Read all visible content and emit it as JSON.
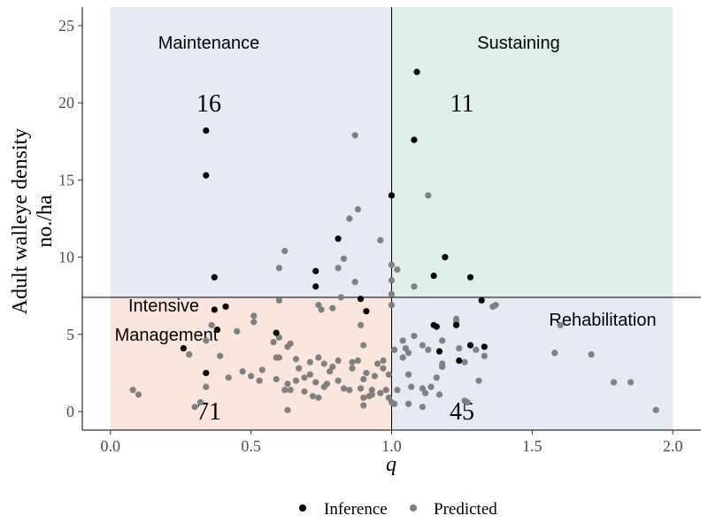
{
  "chart_data": {
    "type": "scatter",
    "title": "",
    "xlabel": "q",
    "ylabel_line1": "Adult walleye density",
    "ylabel_line2": "no./ha",
    "xlim": [
      -0.1,
      2.1
    ],
    "ylim": [
      -1.2,
      26.2
    ],
    "x_ticks": [
      0.0,
      0.5,
      1.0,
      1.5,
      2.0
    ],
    "x_tick_labels": [
      "0.0",
      "0.5",
      "1.0",
      "1.5",
      "2.0"
    ],
    "y_ticks": [
      0,
      5,
      10,
      15,
      20,
      25
    ],
    "y_tick_labels": [
      "0",
      "5",
      "10",
      "15",
      "20",
      "25"
    ],
    "grid": false,
    "legend_position": "bottom",
    "reference_lines": {
      "x": 1.0,
      "y": 7.4
    },
    "regions": [
      {
        "name": "Maintenance",
        "x": [
          0.0,
          1.0
        ],
        "y": [
          7.4,
          26.2
        ],
        "color": "#e6eaf4"
      },
      {
        "name": "Sustaining",
        "x": [
          1.0,
          2.0
        ],
        "y": [
          7.4,
          26.2
        ],
        "color": "#dff0ea"
      },
      {
        "name": "Intensive Management",
        "x": [
          0.0,
          1.0
        ],
        "y": [
          -1.2,
          7.4
        ],
        "color": "#fbe6de"
      },
      {
        "name": "Rehabilitation",
        "x": [
          1.0,
          2.0
        ],
        "y": [
          -1.2,
          7.4
        ],
        "color": "#e6eaf4"
      }
    ],
    "region_labels": {
      "maintenance": "Maintenance",
      "sustaining": "Sustaining",
      "intensive_line1": "Intensive",
      "intensive_line2": "Management",
      "rehabilitation": "Rehabilitation"
    },
    "counts": {
      "maintenance": "16",
      "sustaining": "11",
      "intensive": "71",
      "rehabilitation": "45"
    },
    "series": [
      {
        "name": "Inference",
        "color": "#000000",
        "points": [
          [
            1.09,
            22.0
          ],
          [
            0.34,
            18.2
          ],
          [
            1.08,
            17.6
          ],
          [
            0.34,
            15.3
          ],
          [
            1.0,
            14.0
          ],
          [
            0.81,
            11.2
          ],
          [
            1.19,
            10.0
          ],
          [
            0.37,
            8.7
          ],
          [
            0.73,
            9.1
          ],
          [
            1.15,
            8.8
          ],
          [
            1.28,
            8.7
          ],
          [
            0.73,
            8.1
          ],
          [
            0.41,
            6.8
          ],
          [
            0.37,
            6.6
          ],
          [
            0.89,
            7.3
          ],
          [
            1.32,
            7.2
          ],
          [
            0.91,
            6.5
          ],
          [
            0.38,
            5.3
          ],
          [
            0.59,
            5.1
          ],
          [
            1.15,
            5.6
          ],
          [
            1.16,
            5.5
          ],
          [
            1.23,
            5.6
          ],
          [
            0.26,
            4.1
          ],
          [
            1.28,
            4.3
          ],
          [
            1.33,
            4.2
          ],
          [
            1.17,
            3.9
          ],
          [
            1.24,
            3.3
          ],
          [
            0.34,
            2.5
          ]
        ]
      },
      {
        "name": "Predicted",
        "color": "#808080",
        "points": [
          [
            0.87,
            17.9
          ],
          [
            1.13,
            14.0
          ],
          [
            0.88,
            13.1
          ],
          [
            0.85,
            12.5
          ],
          [
            0.96,
            11.1
          ],
          [
            0.62,
            10.4
          ],
          [
            0.83,
            9.9
          ],
          [
            0.6,
            9.3
          ],
          [
            0.81,
            9.3
          ],
          [
            1.0,
            9.5
          ],
          [
            1.02,
            9.2
          ],
          [
            1.0,
            8.5
          ],
          [
            0.87,
            8.4
          ],
          [
            1.08,
            8.1
          ],
          [
            0.82,
            7.4
          ],
          [
            1.0,
            7.6
          ],
          [
            0.6,
            7.2
          ],
          [
            0.74,
            6.9
          ],
          [
            0.79,
            6.7
          ],
          [
            0.75,
            6.6
          ],
          [
            1.0,
            6.9
          ],
          [
            1.36,
            6.8
          ],
          [
            1.37,
            6.9
          ],
          [
            0.51,
            6.2
          ],
          [
            0.51,
            5.8
          ],
          [
            0.36,
            5.6
          ],
          [
            0.89,
            5.6
          ],
          [
            1.23,
            6.0
          ],
          [
            1.23,
            5.8
          ],
          [
            1.6,
            5.6
          ],
          [
            0.45,
            5.2
          ],
          [
            0.6,
            4.8
          ],
          [
            0.34,
            4.6
          ],
          [
            1.08,
            4.9
          ],
          [
            1.04,
            4.6
          ],
          [
            1.11,
            4.3
          ],
          [
            0.58,
            4.5
          ],
          [
            0.63,
            4.2
          ],
          [
            0.64,
            4.4
          ],
          [
            0.9,
            4.3
          ],
          [
            1.01,
            4.0
          ],
          [
            1.05,
            4.1
          ],
          [
            1.13,
            4.0
          ],
          [
            1.18,
            4.6
          ],
          [
            1.24,
            4.1
          ],
          [
            1.3,
            4.0
          ],
          [
            0.28,
            3.7
          ],
          [
            0.39,
            3.6
          ],
          [
            0.59,
            3.5
          ],
          [
            0.6,
            3.5
          ],
          [
            0.66,
            3.4
          ],
          [
            0.71,
            3.2
          ],
          [
            0.74,
            3.5
          ],
          [
            0.76,
            3.1
          ],
          [
            0.81,
            3.3
          ],
          [
            0.86,
            3.2
          ],
          [
            0.88,
            3.3
          ],
          [
            0.95,
            3.1
          ],
          [
            0.97,
            3.3
          ],
          [
            1.04,
            3.5
          ],
          [
            1.06,
            3.8
          ],
          [
            1.18,
            3.1
          ],
          [
            1.26,
            3.2
          ],
          [
            1.33,
            3.6
          ],
          [
            1.58,
            3.8
          ],
          [
            1.71,
            3.7
          ],
          [
            0.47,
            2.6
          ],
          [
            0.5,
            2.3
          ],
          [
            0.54,
            2.7
          ],
          [
            0.67,
            2.8
          ],
          [
            0.71,
            2.4
          ],
          [
            0.78,
            2.6
          ],
          [
            0.79,
            2.9
          ],
          [
            0.86,
            2.8
          ],
          [
            0.91,
            2.5
          ],
          [
            0.97,
            2.8
          ],
          [
            1.18,
            2.9
          ],
          [
            0.42,
            2.2
          ],
          [
            0.53,
            2.0
          ],
          [
            0.59,
            2.1
          ],
          [
            0.66,
            2.0
          ],
          [
            0.69,
            2.2
          ],
          [
            0.73,
            1.9
          ],
          [
            0.77,
            1.8
          ],
          [
            0.81,
            2.0
          ],
          [
            0.9,
            2.1
          ],
          [
            0.94,
            2.3
          ],
          [
            0.99,
            2.4
          ],
          [
            1.06,
            2.4
          ],
          [
            1.16,
            2.2
          ],
          [
            1.31,
            2.0
          ],
          [
            0.34,
            1.6
          ],
          [
            0.62,
            1.4
          ],
          [
            0.63,
            1.8
          ],
          [
            0.64,
            1.4
          ],
          [
            0.69,
            1.3
          ],
          [
            0.76,
            1.6
          ],
          [
            0.83,
            1.5
          ],
          [
            0.85,
            1.4
          ],
          [
            0.89,
            1.5
          ],
          [
            0.93,
            1.4
          ],
          [
            0.98,
            1.4
          ],
          [
            1.02,
            1.4
          ],
          [
            1.07,
            1.6
          ],
          [
            1.11,
            1.5
          ],
          [
            1.14,
            1.6
          ],
          [
            1.79,
            1.9
          ],
          [
            1.85,
            1.9
          ],
          [
            0.08,
            1.4
          ],
          [
            0.1,
            1.1
          ],
          [
            0.72,
            1.0
          ],
          [
            0.74,
            0.9
          ],
          [
            0.9,
            0.9
          ],
          [
            0.92,
            1.0
          ],
          [
            0.93,
            1.1
          ],
          [
            0.96,
            1.2
          ],
          [
            0.99,
            0.9
          ],
          [
            1.12,
            1.2
          ],
          [
            1.17,
            1.1
          ],
          [
            0.3,
            0.3
          ],
          [
            0.32,
            0.6
          ],
          [
            0.63,
            0.1
          ],
          [
            0.9,
            0.4
          ],
          [
            1.0,
            0.6
          ],
          [
            1.01,
            0.5
          ],
          [
            1.06,
            0.5
          ],
          [
            1.11,
            0.3
          ],
          [
            1.26,
            0.7
          ],
          [
            1.27,
            0.6
          ],
          [
            1.94,
            0.1
          ]
        ]
      }
    ]
  }
}
